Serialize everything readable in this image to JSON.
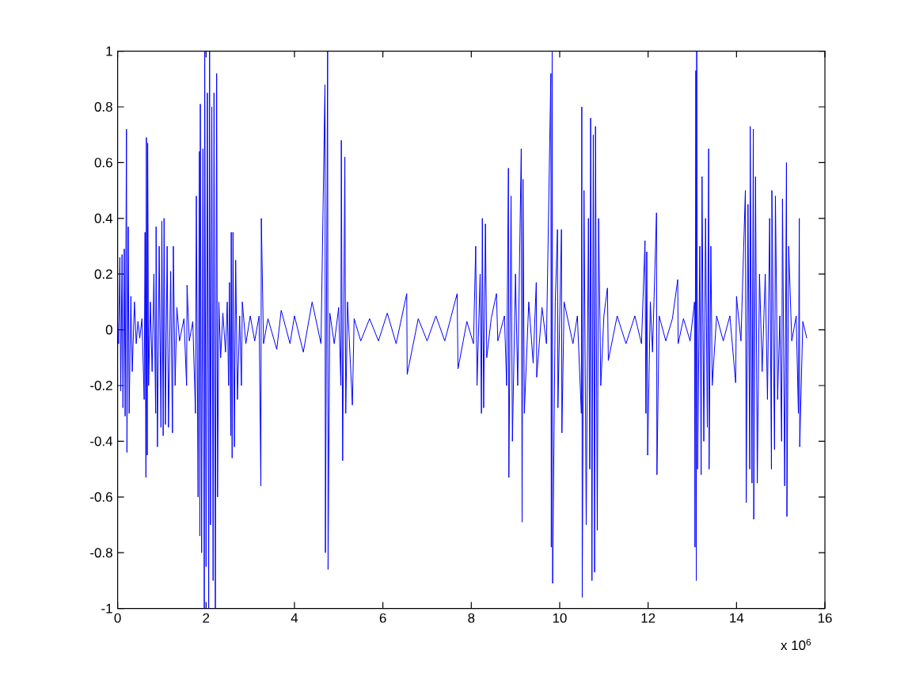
{
  "chart_data": {
    "type": "line",
    "color": "#0000ff",
    "line_style": "solid",
    "xlim": [
      0,
      16
    ],
    "xticks": [
      0,
      2,
      4,
      6,
      8,
      10,
      12,
      14,
      16
    ],
    "ylim": [
      -1,
      1
    ],
    "yticks": [
      -1,
      -0.8,
      -0.6,
      -0.4,
      -0.2,
      0,
      0.2,
      0.4,
      0.6,
      0.8,
      1
    ],
    "annotations": [
      "x 10$^{6}$"
    ],
    "x": [
      0.0,
      0.02,
      0.05,
      0.07,
      0.1,
      0.12,
      0.15,
      0.17,
      0.2,
      0.21,
      0.24,
      0.26,
      0.3,
      0.33,
      0.38,
      0.42,
      0.46,
      0.5,
      0.55,
      0.6,
      0.62,
      0.64,
      0.65,
      0.67,
      0.68,
      0.7,
      0.74,
      0.78,
      0.82,
      0.86,
      0.87,
      0.9,
      0.94,
      0.98,
      1.0,
      1.03,
      1.05,
      1.08,
      1.12,
      1.15,
      1.2,
      1.24,
      1.26,
      1.3,
      1.34,
      1.4,
      1.5,
      1.56,
      1.57,
      1.62,
      1.7,
      1.76,
      1.78,
      1.82,
      1.85,
      1.86,
      1.87,
      1.9,
      1.93,
      1.96,
      1.97,
      2.0,
      2.03,
      2.06,
      2.08,
      2.1,
      2.13,
      2.16,
      2.18,
      2.21,
      2.24,
      2.26,
      2.29,
      2.33,
      2.38,
      2.44,
      2.48,
      2.51,
      2.53,
      2.56,
      2.57,
      2.59,
      2.61,
      2.64,
      2.67,
      2.71,
      2.76,
      2.8,
      2.82,
      2.9,
      3.0,
      3.1,
      3.2,
      3.24,
      3.25,
      3.3,
      3.4,
      3.6,
      3.7,
      3.9,
      4.0,
      4.2,
      4.4,
      4.6,
      4.69,
      4.7,
      4.75,
      4.76,
      4.8,
      4.9,
      5.0,
      5.05,
      5.06,
      5.09,
      5.14,
      5.16,
      5.2,
      5.31,
      5.35,
      5.5,
      5.7,
      5.9,
      6.1,
      6.3,
      6.54,
      6.55,
      6.8,
      7.0,
      7.2,
      7.4,
      7.68,
      7.7,
      7.9,
      8.05,
      8.1,
      8.13,
      8.2,
      8.23,
      8.25,
      8.28,
      8.32,
      8.35,
      8.45,
      8.57,
      8.6,
      8.75,
      8.8,
      8.84,
      8.85,
      8.9,
      8.93,
      9.0,
      9.05,
      9.13,
      9.15,
      9.17,
      9.2,
      9.3,
      9.4,
      9.47,
      9.48,
      9.6,
      9.7,
      9.8,
      9.81,
      9.83,
      9.84,
      9.9,
      9.95,
      9.96,
      10.04,
      10.05,
      10.1,
      10.3,
      10.4,
      10.49,
      10.5,
      10.51,
      10.55,
      10.6,
      10.65,
      10.68,
      10.7,
      10.73,
      10.76,
      10.79,
      10.81,
      10.85,
      10.88,
      10.93,
      11.0,
      11.08,
      11.1,
      11.3,
      11.5,
      11.7,
      11.85,
      11.93,
      11.95,
      11.97,
      11.99,
      12.05,
      12.1,
      12.19,
      12.2,
      12.25,
      12.4,
      12.55,
      12.67,
      12.68,
      12.8,
      12.95,
      13.05,
      13.06,
      13.08,
      13.09,
      13.1,
      13.12,
      13.17,
      13.2,
      13.22,
      13.26,
      13.3,
      13.34,
      13.37,
      13.38,
      13.42,
      13.45,
      13.55,
      13.7,
      13.85,
      13.98,
      14.0,
      14.1,
      14.2,
      14.22,
      14.26,
      14.3,
      14.31,
      14.35,
      14.38,
      14.39,
      14.43,
      14.47,
      14.52,
      14.58,
      14.65,
      14.7,
      14.75,
      14.79,
      14.8,
      14.86,
      14.88,
      14.93,
      14.98,
      15.02,
      15.04,
      15.09,
      15.13,
      15.14,
      15.18,
      15.25,
      15.35,
      15.4,
      15.42,
      15.43,
      15.5,
      15.59
    ],
    "values": [
      0.03,
      -0.05,
      0.26,
      -0.22,
      0.27,
      -0.28,
      0.29,
      -0.31,
      0.72,
      -0.44,
      0.37,
      -0.3,
      0.12,
      -0.15,
      0.1,
      -0.05,
      0.03,
      -0.03,
      0.04,
      -0.25,
      0.35,
      -0.53,
      0.69,
      -0.45,
      0.67,
      -0.2,
      0.1,
      -0.15,
      0.2,
      -0.3,
      0.37,
      -0.42,
      0.3,
      -0.35,
      0.39,
      -0.38,
      0.4,
      -0.34,
      0.3,
      -0.35,
      0.21,
      -0.37,
      0.3,
      -0.2,
      0.08,
      -0.04,
      0.04,
      -0.2,
      0.16,
      -0.04,
      0.03,
      -0.3,
      0.48,
      -0.6,
      0.64,
      -0.74,
      0.81,
      -0.8,
      0.65,
      -1.0,
      1.0,
      -0.85,
      0.85,
      -1.0,
      1.0,
      -0.7,
      0.8,
      -0.9,
      0.85,
      -1.0,
      0.92,
      -0.6,
      0.1,
      -0.1,
      0.06,
      -0.08,
      0.1,
      -0.2,
      0.17,
      -0.38,
      0.35,
      -0.46,
      0.35,
      -0.42,
      0.25,
      -0.25,
      0.05,
      -0.2,
      0.1,
      -0.05,
      0.05,
      -0.04,
      0.05,
      -0.56,
      0.4,
      -0.05,
      0.04,
      -0.07,
      0.07,
      -0.05,
      0.05,
      -0.08,
      0.1,
      -0.05,
      0.88,
      -0.8,
      1.0,
      -0.86,
      0.06,
      -0.05,
      0.08,
      -0.2,
      0.68,
      -0.47,
      0.62,
      -0.3,
      0.1,
      -0.27,
      0.04,
      -0.04,
      0.04,
      -0.04,
      0.06,
      -0.05,
      0.13,
      -0.16,
      0.04,
      -0.04,
      0.05,
      -0.04,
      0.13,
      -0.14,
      0.03,
      -0.05,
      0.3,
      -0.2,
      0.2,
      -0.3,
      0.4,
      -0.28,
      0.38,
      -0.1,
      0.04,
      0.13,
      -0.04,
      0.05,
      -0.2,
      0.58,
      -0.53,
      0.48,
      -0.4,
      0.2,
      -0.2,
      0.65,
      -0.69,
      0.54,
      -0.3,
      0.1,
      -0.12,
      0.17,
      -0.17,
      0.08,
      -0.05,
      0.92,
      -0.78,
      1.0,
      -0.91,
      0.1,
      0.36,
      -0.28,
      0.36,
      -0.37,
      0.1,
      -0.05,
      0.05,
      -0.3,
      0.8,
      -0.96,
      0.5,
      -0.7,
      0.4,
      -0.5,
      0.76,
      -0.9,
      0.7,
      -0.87,
      0.73,
      -0.72,
      0.4,
      -0.2,
      0.05,
      0.15,
      -0.11,
      0.05,
      -0.05,
      0.05,
      -0.05,
      0.32,
      -0.3,
      0.28,
      -0.45,
      0.1,
      -0.08,
      0.42,
      -0.52,
      0.05,
      -0.04,
      0.04,
      0.18,
      -0.05,
      0.04,
      -0.04,
      0.1,
      -0.78,
      0.93,
      -0.9,
      1.0,
      -0.5,
      0.3,
      -0.52,
      0.55,
      -0.4,
      0.4,
      -0.35,
      0.65,
      -0.5,
      0.3,
      -0.2,
      0.05,
      -0.04,
      0.05,
      -0.19,
      0.12,
      -0.04,
      0.5,
      -0.62,
      0.45,
      -0.5,
      0.73,
      -0.55,
      0.72,
      -0.68,
      0.55,
      -0.55,
      0.2,
      -0.15,
      0.2,
      -0.25,
      0.4,
      -0.5,
      0.5,
      -0.43,
      0.48,
      -0.25,
      0.05,
      -0.4,
      0.47,
      -0.56,
      0.6,
      -0.67,
      0.3,
      -0.04,
      0.05,
      -0.3,
      0.4,
      -0.42,
      0.03,
      -0.03
    ]
  }
}
